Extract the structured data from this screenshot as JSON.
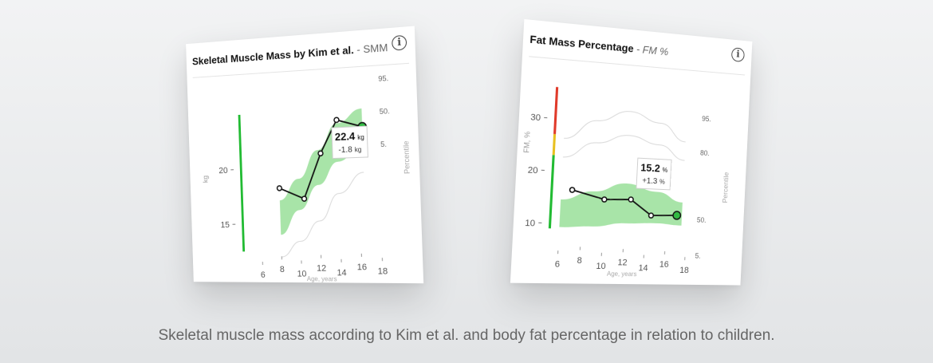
{
  "caption": "Skeletal muscle mass according to Kim et al. and body fat percentage in relation to children.",
  "chart_data": [
    {
      "type": "line",
      "title": "Skeletal Muscle Mass by Kim et al.",
      "subtitle": "- SMM",
      "xlabel": "Age, years",
      "ylabel": "kg",
      "y2label": "Percentile",
      "x_ticks": [
        6,
        8,
        10,
        12,
        14,
        16,
        18
      ],
      "y_ticks": [
        15,
        20
      ],
      "percentile_labels": [
        "95.",
        "50.",
        "5."
      ],
      "xlim": [
        5,
        19
      ],
      "ylim": [
        12,
        27
      ],
      "band": {
        "x": [
          8,
          10,
          12,
          14,
          16.5
        ],
        "lower": [
          14.0,
          16.2,
          18.4,
          20.4,
          21.8
        ],
        "upper": [
          17.1,
          19.0,
          21.5,
          23.8,
          25.0
        ]
      },
      "percentile_lines": [
        {
          "x": [
            8,
            10,
            12,
            14,
            16.5
          ],
          "y": [
            12.0,
            13.4,
            15.2,
            17.6,
            19.4
          ]
        }
      ],
      "status_bar": {
        "color": "#22bb33",
        "y_range": [
          12.5,
          25.0
        ]
      },
      "series": [
        {
          "x": [
            8,
            10.5,
            12.3,
            14,
            16.5
          ],
          "y": [
            18.2,
            17.2,
            21.2,
            24.1,
            23.4
          ]
        }
      ],
      "callout": {
        "value": "22.4",
        "unit": "kg",
        "delta": "-1.8",
        "delta_unit": "kg"
      },
      "colors": {
        "band": "#a8e4a8",
        "line": "#111111",
        "accent": "#33bb44"
      }
    },
    {
      "type": "line",
      "title": "Fat Mass Percentage",
      "subtitle": "- FM %",
      "xlabel": "Age, years",
      "ylabel": "FM, %",
      "y2label": "Percentile",
      "x_ticks": [
        6,
        8,
        10,
        12,
        14,
        16,
        18
      ],
      "y_ticks": [
        10,
        20,
        30
      ],
      "percentile_labels": [
        "95.",
        "80.",
        "50.",
        "5."
      ],
      "xlim": [
        5,
        19
      ],
      "ylim": [
        7,
        38
      ],
      "band": {
        "x": [
          6,
          9,
          12,
          15,
          17.5
        ],
        "lower": [
          9.3,
          9.6,
          10.4,
          10.6,
          10.3
        ],
        "upper": [
          14.6,
          16.4,
          18.2,
          16.8,
          14.9
        ]
      },
      "percentile_lines": [
        {
          "x": [
            6,
            9,
            12,
            15,
            17.5
          ],
          "y": [
            26.3,
            30.1,
            32.3,
            30.4,
            27.0
          ]
        },
        {
          "x": [
            6,
            9,
            12,
            15,
            17.5
          ],
          "y": [
            22.7,
            25.8,
            27.6,
            26.1,
            23.3
          ]
        }
      ],
      "status_bar": {
        "colors": [
          "#22bb33",
          "#e8c020",
          "#e03a2a"
        ],
        "thresholds": [
          9,
          23,
          27,
          36
        ]
      },
      "series": [
        {
          "x": [
            7,
            10,
            12.5,
            14.5,
            17
          ],
          "y": [
            16.5,
            14.9,
            15.1,
            12.1,
            12.3
          ]
        }
      ],
      "callout": {
        "value": "15.2",
        "unit": "%",
        "delta": "+1.3",
        "delta_unit": "%"
      },
      "colors": {
        "band": "#a8e4a8",
        "line": "#111111",
        "accent": "#33bb44"
      }
    }
  ]
}
